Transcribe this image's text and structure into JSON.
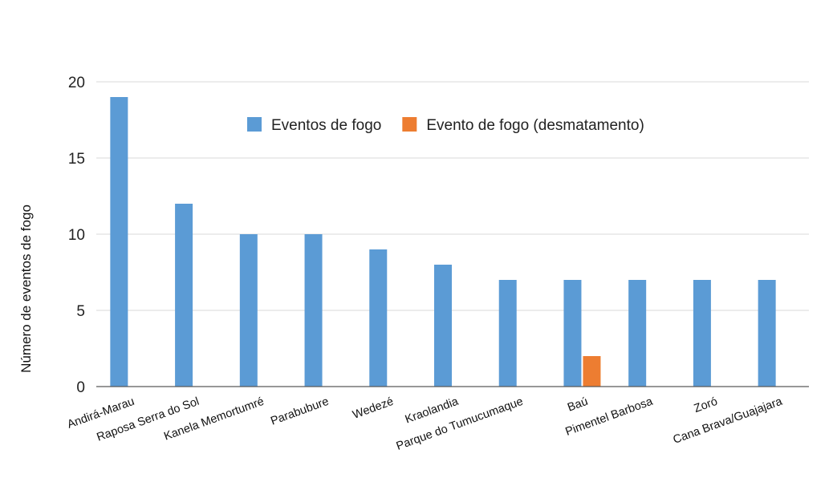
{
  "chart_data": {
    "type": "bar",
    "title": "",
    "xlabel": "",
    "ylabel": "Número de eventos de fogo",
    "ylim": [
      0,
      20
    ],
    "yticks": [
      0,
      5,
      10,
      15,
      20
    ],
    "grid": true,
    "legend_position": "top-center",
    "categories": [
      "Andirá-Marau",
      "Raposa Serra do Sol",
      "Kanela Memortumré",
      "Parabubure",
      "Wedezé",
      "Kraolandia",
      "Parque do Tumucumaque",
      "Baú",
      "Pimentel Barbosa",
      "Zoró",
      "Cana Brava/Guajajara"
    ],
    "series": [
      {
        "name": "Eventos de fogo",
        "color": "#5B9BD5",
        "values": [
          19,
          12,
          10,
          10,
          9,
          8,
          7,
          7,
          7,
          7,
          7
        ]
      },
      {
        "name": "Evento de fogo (desmatamento)",
        "color": "#ED7D31",
        "values": [
          null,
          null,
          null,
          null,
          null,
          null,
          null,
          2,
          null,
          null,
          null
        ]
      }
    ]
  }
}
